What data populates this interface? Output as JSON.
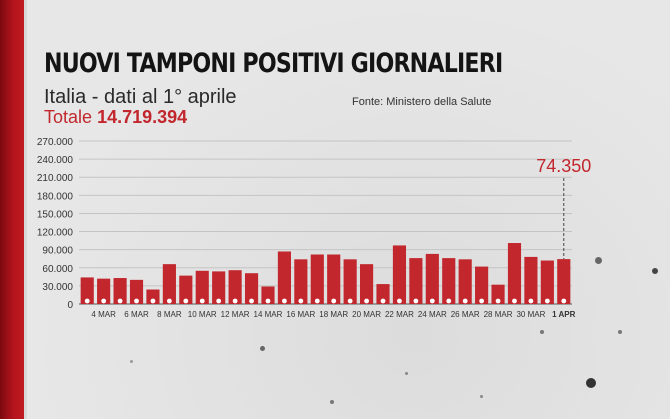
{
  "header": {
    "title": "NUOVI TAMPONI POSITIVI GIORNALIERI",
    "subtitle": "Italia - dati al 1° aprile",
    "source": "Fonte: Ministero della Salute",
    "total_label": "Totale",
    "total_value": "14.719.394"
  },
  "colors": {
    "bar": "#c1272d",
    "accent": "#c1272d",
    "band": "#b3141c"
  },
  "chart_data": {
    "type": "bar",
    "title": "NUOVI TAMPONI POSITIVI GIORNALIERI",
    "categories": [
      "3 MAR",
      "4 MAR",
      "5 MAR",
      "6 MAR",
      "7 MAR",
      "8 MAR",
      "9 MAR",
      "10 MAR",
      "11 MAR",
      "12 MAR",
      "13 MAR",
      "14 MAR",
      "15 MAR",
      "16 MAR",
      "17 MAR",
      "18 MAR",
      "19 MAR",
      "20 MAR",
      "21 MAR",
      "22 MAR",
      "23 MAR",
      "24 MAR",
      "25 MAR",
      "26 MAR",
      "27 MAR",
      "28 MAR",
      "29 MAR",
      "30 MAR",
      "31 MAR",
      "1 APR"
    ],
    "values": [
      44000,
      42000,
      43000,
      40000,
      24000,
      66000,
      47000,
      55000,
      54000,
      56000,
      51000,
      29000,
      87000,
      74000,
      82000,
      82000,
      74000,
      66000,
      33000,
      97000,
      76000,
      83000,
      76000,
      74000,
      62000,
      32000,
      101000,
      78000,
      72000,
      74350
    ],
    "x_tick_labels": [
      "4 MAR",
      "6 MAR",
      "8 MAR",
      "10 MAR",
      "12 MAR",
      "14 MAR",
      "16 MAR",
      "18 MAR",
      "20 MAR",
      "22 MAR",
      "24 MAR",
      "26 MAR",
      "28 MAR",
      "30 MAR",
      "1 APR"
    ],
    "y_tick_labels": [
      "0",
      "30.000",
      "60.000",
      "90.000",
      "120.000",
      "150.000",
      "180.000",
      "210.000",
      "240.000",
      "270.000"
    ],
    "ylim": [
      0,
      270000
    ],
    "grid": true,
    "annotation": {
      "category": "1 APR",
      "label": "74.350"
    }
  }
}
